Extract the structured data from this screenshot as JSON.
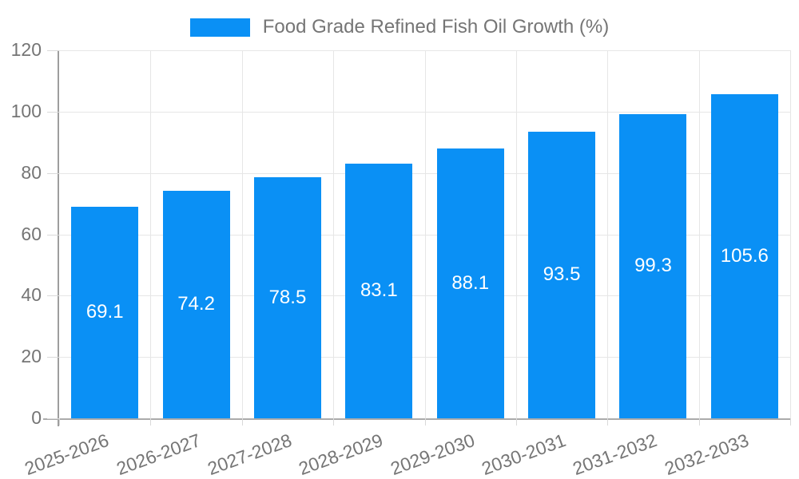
{
  "legend": {
    "label": "Food Grade Refined Fish Oil Growth (%)",
    "swatch_color": "#0a90f5"
  },
  "chart_data": {
    "type": "bar",
    "title": "Food Grade Refined Fish Oil Growth (%)",
    "categories": [
      "2025-2026",
      "2026-2027",
      "2027-2028",
      "2028-2029",
      "2029-2030",
      "2030-2031",
      "2031-2032",
      "2032-2033"
    ],
    "values": [
      69.1,
      74.2,
      78.5,
      83.1,
      88.1,
      93.5,
      99.3,
      105.6
    ],
    "xlabel": "",
    "ylabel": "",
    "ylim": [
      0,
      120
    ],
    "ytick_step": 20,
    "ytick_labels": [
      "0",
      "20",
      "40",
      "60",
      "80",
      "100",
      "120"
    ],
    "grid": true,
    "legend_position": "top-center",
    "bar_color": "#0a90f5",
    "bar_label_color": "#ffffff",
    "axis_text_color": "#757575",
    "gridline_color": "#e6e6e6"
  }
}
